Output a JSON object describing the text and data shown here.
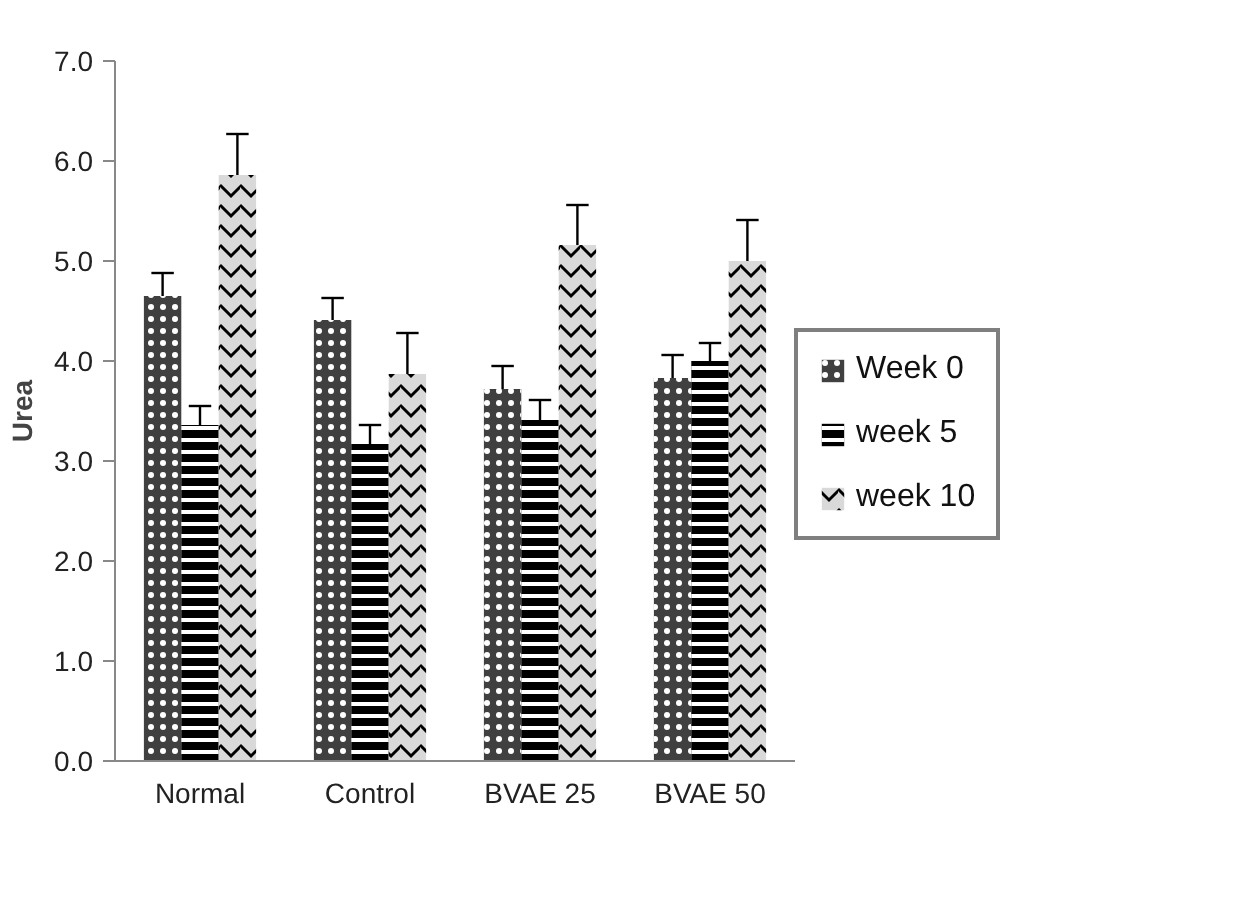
{
  "chart_data": {
    "type": "bar",
    "ylabel": "Urea",
    "categories": [
      "Normal",
      "Control",
      "BVAE 25",
      "BVAE 50"
    ],
    "series": [
      {
        "name": "Week 0",
        "color": "#404040",
        "values": [
          4.65,
          4.41,
          3.72,
          3.83
        ],
        "errors": [
          [
            4.65,
            4.88
          ],
          [
            4.41,
            4.63
          ],
          [
            3.72,
            3.95
          ],
          [
            3.83,
            4.06
          ]
        ]
      },
      {
        "name": "week 5",
        "color": "#000000",
        "values": [
          3.36,
          3.17,
          3.41,
          4.0
        ],
        "errors": [
          [
            3.36,
            3.55
          ],
          [
            3.17,
            3.36
          ],
          [
            3.41,
            3.61
          ],
          [
            4.0,
            4.18
          ]
        ]
      },
      {
        "name": "week 10",
        "color": "#d9d9d9",
        "values": [
          5.86,
          3.87,
          5.16,
          5.0
        ],
        "errors": [
          [
            5.86,
            6.27
          ],
          [
            3.87,
            4.28
          ],
          [
            5.16,
            5.56
          ],
          [
            5.0,
            5.41
          ]
        ]
      }
    ],
    "ylim": [
      0,
      7
    ],
    "yticks": [
      {
        "value": 0,
        "label": "0.0"
      },
      {
        "value": 1,
        "label": "1.0"
      },
      {
        "value": 2,
        "label": "2.0"
      },
      {
        "value": 3,
        "label": "3.0"
      },
      {
        "value": 4,
        "label": "4.0"
      },
      {
        "value": 5,
        "label": "5.0"
      },
      {
        "value": 6,
        "label": "6.0"
      },
      {
        "value": 7,
        "label": "7.0"
      }
    ],
    "grid": false,
    "legend": "right"
  }
}
